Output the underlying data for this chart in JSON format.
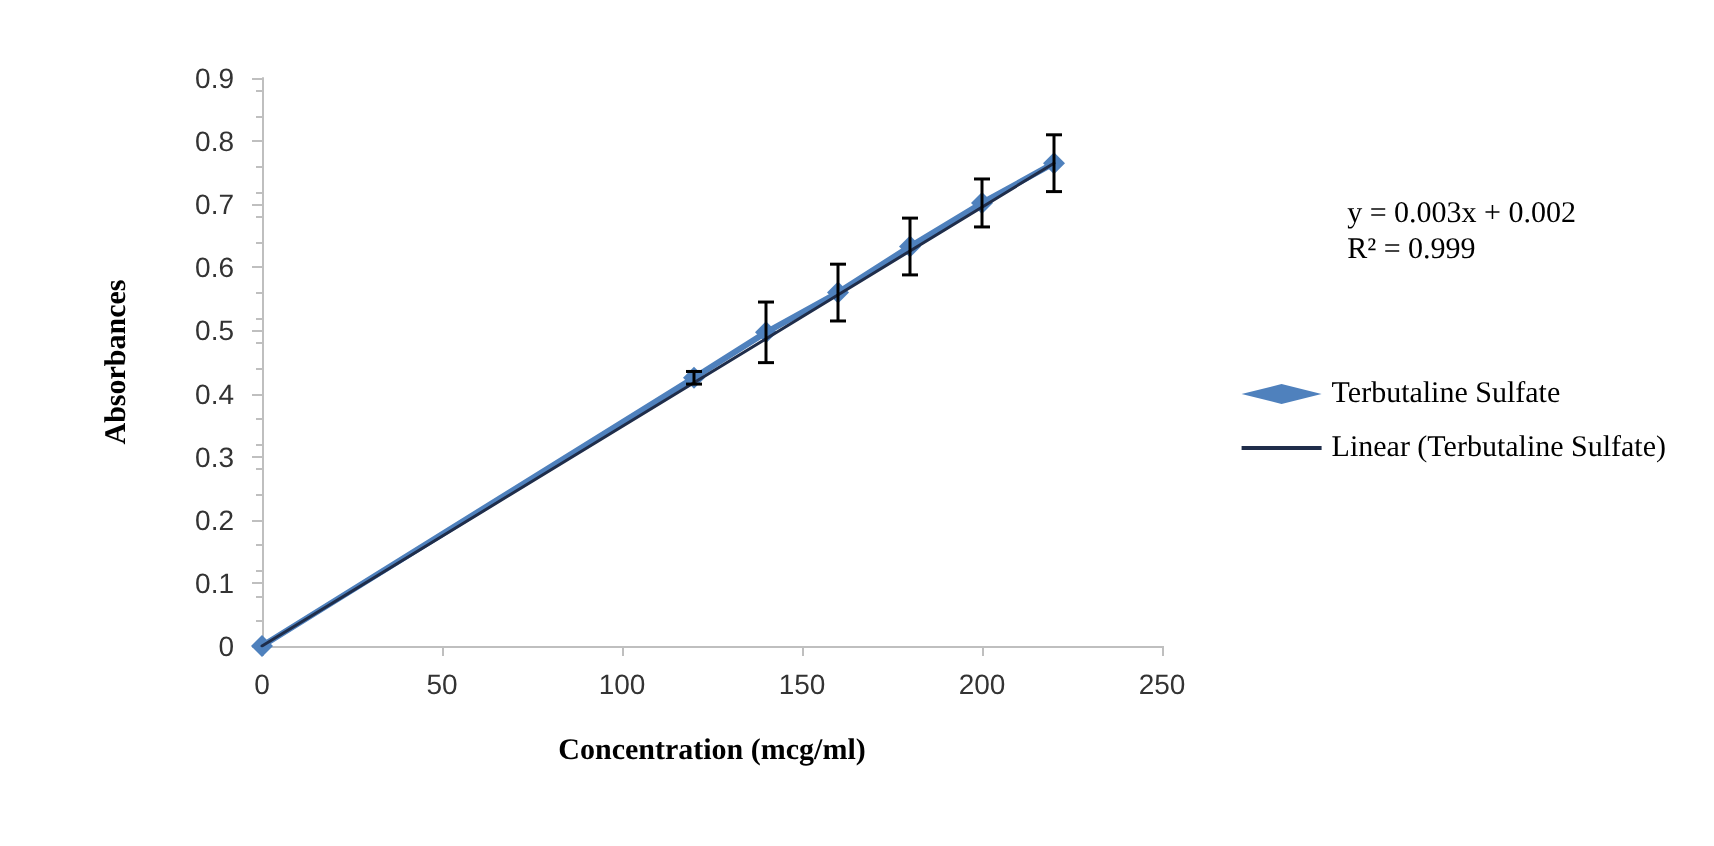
{
  "chart_data": {
    "type": "line",
    "xlabel": "Concentration (mcg/ml)",
    "ylabel": "Absorbances",
    "x": [
      0,
      120,
      140,
      160,
      180,
      200,
      220
    ],
    "series": [
      {
        "name": "Terbutaline Sulfate",
        "color": "#4f81bd",
        "values": [
          0,
          0.425,
          0.497,
          0.56,
          0.633,
          0.702,
          0.765
        ],
        "errors": [
          null,
          0.01,
          0.048,
          0.045,
          0.045,
          0.038,
          0.045
        ],
        "marker": "diamond"
      },
      {
        "name": "Linear (Terbutaline Sulfate)",
        "color": "#1f2d4a",
        "type": "line",
        "x": [
          0,
          220
        ],
        "values": [
          0,
          0.765
        ],
        "marker": "none"
      }
    ],
    "xlim": [
      0,
      250
    ],
    "xticks": [
      0,
      50,
      100,
      150,
      200,
      250
    ],
    "ylim": [
      0,
      0.9
    ],
    "yticks": [
      0,
      0.1,
      0.2,
      0.3,
      0.4,
      0.5,
      0.6,
      0.7,
      0.8,
      0.9
    ],
    "grid": false,
    "legend": "right",
    "annotations": [
      "y = 0.003x + 0.002\nR² = 0.999"
    ]
  }
}
